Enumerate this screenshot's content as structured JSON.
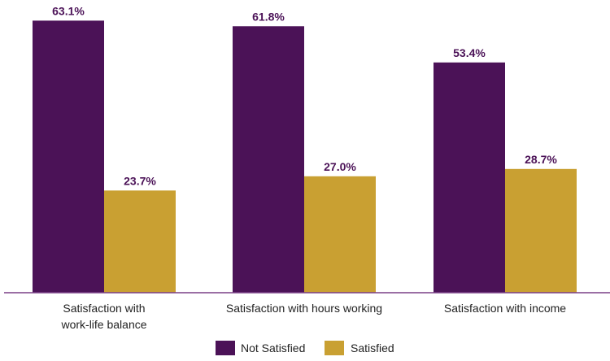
{
  "chart_data": {
    "type": "bar",
    "title": "",
    "xlabel": "",
    "ylabel": "",
    "ylim": [
      0,
      66
    ],
    "grid": false,
    "legend_position": "bottom",
    "categories": [
      [
        "Satisfaction with",
        "work-life balance"
      ],
      [
        "Satisfaction with hours working"
      ],
      [
        "Satisfaction with income"
      ]
    ],
    "series": [
      {
        "name": "Not Satisfied",
        "color": "#4b1257",
        "values": [
          63.1,
          61.8,
          53.4
        ],
        "labels": [
          "63.1%",
          "61.8%",
          "53.4%"
        ]
      },
      {
        "name": "Satisfied",
        "color": "#c9a032",
        "values": [
          23.7,
          27.0,
          28.7
        ],
        "labels": [
          "23.7%",
          "27.0%",
          "28.7%"
        ]
      }
    ],
    "axis_color": "#7a3f86"
  }
}
